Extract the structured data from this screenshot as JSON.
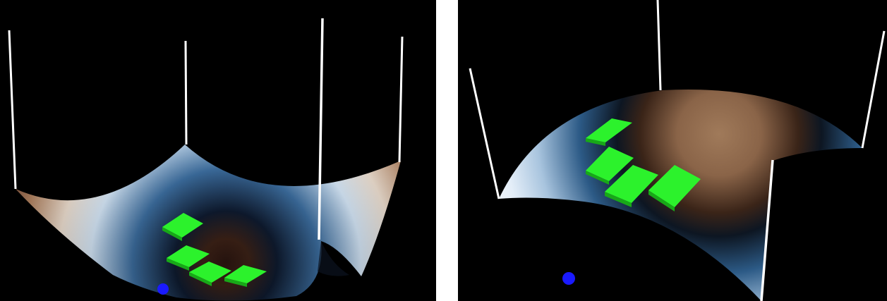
{
  "colors": {
    "background": "#000000",
    "divider": "#ffffff",
    "pole": "#ffffff",
    "tile": "#22ee22",
    "marker": "#1a1aff",
    "surface_low": "#2a1510",
    "surface_mid": "#9a7356",
    "surface_edge": "#ddeefa",
    "surface_blue": "#3a6a9a"
  },
  "panels": [
    {
      "name": "concave-surface-view",
      "shape": "bowl",
      "tiles": 4,
      "poles": 4,
      "markers": 1
    },
    {
      "name": "convex-surface-view",
      "shape": "dome",
      "tiles": 4,
      "poles": 4,
      "markers": 1
    }
  ]
}
